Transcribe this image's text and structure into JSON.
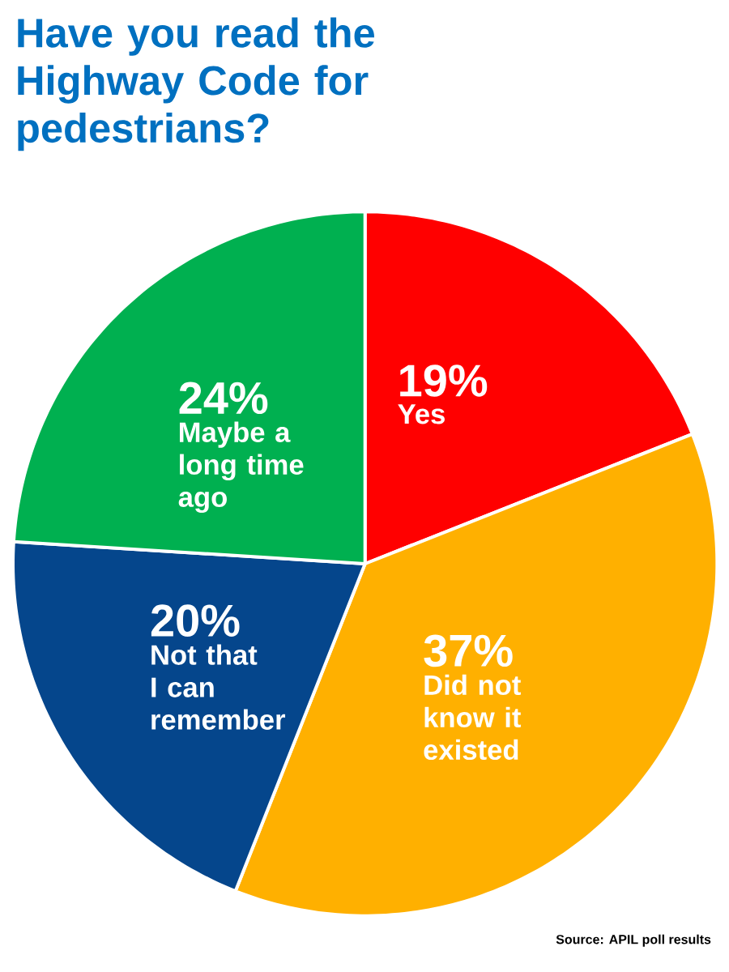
{
  "chart_data": {
    "type": "pie",
    "title": "Have you read the Highway Code for pedestrians?",
    "categories": [
      "Yes",
      "Did not know it existed",
      "Not that I can remember",
      "Maybe a long time ago"
    ],
    "values": [
      19,
      37,
      20,
      24
    ],
    "value_labels": [
      "19%",
      "37%",
      "20%",
      "24%"
    ],
    "colors": [
      "#ff0000",
      "#ffb000",
      "#05468c",
      "#00b050"
    ],
    "annotations": [
      "Source: APIL poll results"
    ]
  }
}
